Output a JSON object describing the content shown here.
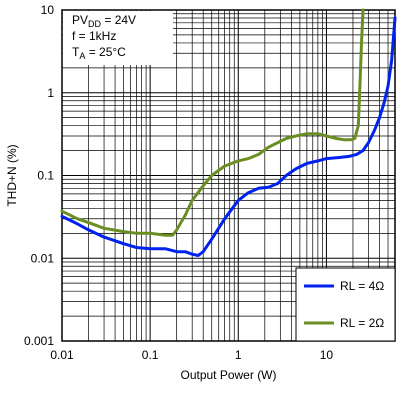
{
  "chart_data": {
    "type": "line",
    "title": "",
    "xlabel": "Output Power (W)",
    "ylabel": "THD+N (%)",
    "xscale": "log",
    "yscale": "log",
    "xlim": [
      0.01,
      60
    ],
    "ylim": [
      0.001,
      10
    ],
    "grid": true,
    "x_ticks": [
      0.01,
      0.1,
      1,
      10
    ],
    "x_tick_labels": [
      "0.01",
      "0.1",
      "1",
      "10"
    ],
    "y_ticks": [
      0.001,
      0.01,
      0.1,
      1,
      10
    ],
    "y_tick_labels": [
      "0.001",
      "0.01",
      "0.1",
      "1",
      "10"
    ],
    "conditions": {
      "pvdd_prefix": "PV",
      "pvdd_sub": "DD",
      "pvdd_value": " = 24V",
      "freq": "f = 1kHz",
      "ta_prefix": "T",
      "ta_sub": "A",
      "ta_value": " = 25°C"
    },
    "legend_position": "bottom-right",
    "series": [
      {
        "name": "RL = 4Ω",
        "color": "#0022ee",
        "x": [
          0.01,
          0.015,
          0.02,
          0.03,
          0.05,
          0.07,
          0.1,
          0.15,
          0.2,
          0.25,
          0.3,
          0.35,
          0.4,
          0.5,
          0.7,
          1.0,
          1.3,
          1.7,
          2.2,
          2.8,
          3.5,
          4.5,
          6,
          8,
          10,
          14,
          18,
          22,
          26,
          30,
          35,
          40,
          45,
          50,
          55,
          60
        ],
        "y": [
          0.032,
          0.026,
          0.022,
          0.018,
          0.015,
          0.0135,
          0.013,
          0.013,
          0.012,
          0.012,
          0.0112,
          0.0108,
          0.012,
          0.017,
          0.03,
          0.05,
          0.062,
          0.07,
          0.072,
          0.08,
          0.1,
          0.12,
          0.14,
          0.15,
          0.16,
          0.165,
          0.17,
          0.18,
          0.2,
          0.25,
          0.35,
          0.5,
          0.75,
          1.2,
          2.5,
          8
        ]
      },
      {
        "name": "RL = 2Ω",
        "color": "#6b8e23",
        "x": [
          0.01,
          0.015,
          0.02,
          0.03,
          0.05,
          0.07,
          0.1,
          0.15,
          0.18,
          0.2,
          0.25,
          0.3,
          0.4,
          0.5,
          0.7,
          1.0,
          1.3,
          1.7,
          2.2,
          2.8,
          3.5,
          4.5,
          6,
          8,
          10,
          13,
          16,
          19,
          21,
          23,
          24,
          25,
          26
        ],
        "y": [
          0.037,
          0.03,
          0.027,
          0.023,
          0.021,
          0.02,
          0.02,
          0.019,
          0.019,
          0.022,
          0.033,
          0.05,
          0.075,
          0.1,
          0.13,
          0.15,
          0.16,
          0.18,
          0.22,
          0.25,
          0.28,
          0.3,
          0.32,
          0.32,
          0.3,
          0.28,
          0.27,
          0.27,
          0.28,
          0.4,
          1.2,
          4,
          10
        ]
      }
    ]
  }
}
